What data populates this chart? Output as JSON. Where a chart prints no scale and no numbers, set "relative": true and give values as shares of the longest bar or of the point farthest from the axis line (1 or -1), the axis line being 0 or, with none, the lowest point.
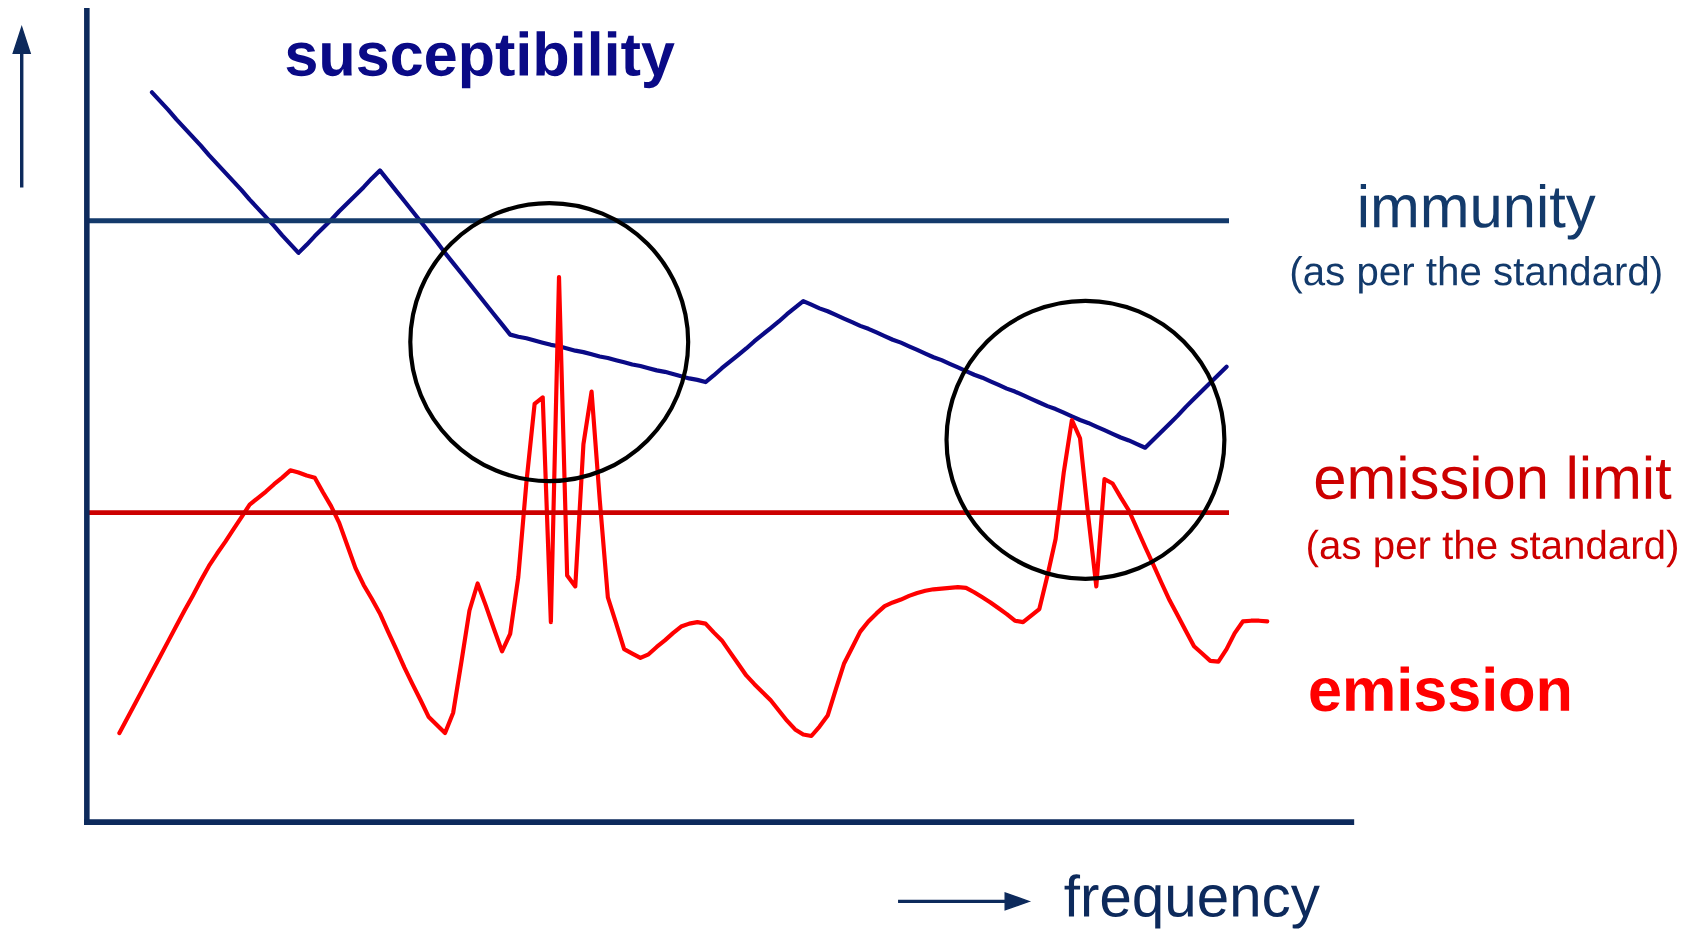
{
  "chart_data": {
    "type": "line",
    "relative": true,
    "xlabel": "frequency",
    "categories": [
      null,
      null,
      null,
      null,
      null,
      null,
      null,
      null,
      null,
      null,
      null,
      null,
      null,
      null,
      null,
      null,
      null,
      null,
      null,
      null,
      null,
      null,
      null,
      null,
      null,
      null,
      null,
      null,
      null,
      null,
      null,
      null,
      null,
      null,
      null,
      null,
      null,
      null,
      null,
      null,
      null,
      null,
      null,
      null,
      null,
      null,
      null,
      null,
      null,
      null,
      null,
      null,
      null,
      null,
      null,
      null,
      null,
      null,
      null,
      null,
      null,
      null,
      null,
      null,
      null,
      null,
      null,
      null,
      null,
      null,
      null,
      null,
      null,
      null,
      null,
      null,
      null,
      null,
      null,
      null,
      null,
      null,
      null,
      null,
      null,
      null,
      null,
      null,
      null,
      null,
      null,
      null,
      null,
      null,
      null,
      null,
      null,
      null,
      null,
      null,
      null,
      null,
      null,
      null,
      null,
      null,
      null,
      null,
      null,
      null,
      null,
      null,
      null,
      null,
      null,
      null,
      null,
      null,
      null,
      null,
      null,
      null,
      null,
      null,
      null,
      null,
      null,
      null,
      null,
      null,
      null,
      null,
      null,
      null,
      null,
      null,
      null,
      null,
      null,
      null,
      null,
      null
    ],
    "series": [
      {
        "name": "susceptibility",
        "color": "#0a0a86",
        "values": [
          null,
          null,
          null,
          null,
          1.0,
          0.988,
          0.976,
          0.963,
          0.951,
          0.939,
          0.927,
          0.914,
          0.902,
          0.89,
          0.878,
          0.866,
          0.853,
          0.841,
          0.829,
          0.817,
          0.804,
          0.792,
          0.78,
          0.791,
          0.803,
          0.814,
          0.825,
          0.837,
          0.848,
          0.859,
          0.87,
          0.882,
          0.893,
          0.879,
          0.865,
          0.851,
          0.837,
          0.823,
          0.809,
          0.795,
          0.78,
          0.766,
          0.752,
          0.738,
          0.724,
          0.71,
          0.696,
          0.682,
          0.668,
          0.665,
          0.663,
          0.66,
          0.657,
          0.654,
          0.652,
          0.649,
          0.646,
          0.644,
          0.641,
          0.638,
          0.636,
          0.633,
          0.63,
          0.627,
          0.625,
          0.622,
          0.619,
          0.617,
          0.614,
          0.611,
          0.608,
          0.606,
          0.603,
          0.612,
          0.622,
          0.631,
          0.64,
          0.649,
          0.659,
          0.668,
          0.677,
          0.686,
          0.696,
          0.705,
          0.714,
          0.709,
          0.704,
          0.7,
          0.695,
          0.69,
          0.685,
          0.68,
          0.676,
          0.671,
          0.666,
          0.661,
          0.657,
          0.652,
          0.647,
          0.642,
          0.637,
          0.633,
          0.628,
          0.623,
          0.618,
          0.613,
          0.609,
          0.604,
          0.599,
          0.594,
          0.59,
          0.585,
          0.58,
          0.575,
          0.57,
          0.566,
          0.561,
          0.556,
          0.551,
          0.547,
          0.542,
          0.537,
          0.532,
          0.527,
          0.523,
          0.518,
          0.513,
          0.524,
          0.535,
          0.546,
          0.557,
          0.569,
          0.58,
          0.591,
          0.602,
          0.613,
          0.624,
          null,
          null,
          null,
          null,
          null
        ]
      },
      {
        "name": "emission",
        "color": "#ff0000",
        "values": [
          0.122,
          0.143,
          0.164,
          0.185,
          0.206,
          0.227,
          0.248,
          0.269,
          0.29,
          0.31,
          0.331,
          0.351,
          0.368,
          0.384,
          0.401,
          0.418,
          0.435,
          0.444,
          0.453,
          0.463,
          0.472,
          0.482,
          0.479,
          0.475,
          0.472,
          0.452,
          0.433,
          0.41,
          0.379,
          0.348,
          0.325,
          0.306,
          0.286,
          0.261,
          0.237,
          0.212,
          0.189,
          0.167,
          0.144,
          0.133,
          0.122,
          0.15,
          0.219,
          0.29,
          0.327,
          0.297,
          0.265,
          0.234,
          0.258,
          0.336,
          0.466,
          0.573,
          0.582,
          0.274,
          0.747,
          0.338,
          0.323,
          0.518,
          0.59,
          0.442,
          0.308,
          0.273,
          0.237,
          0.231,
          0.225,
          0.23,
          0.24,
          0.249,
          0.259,
          0.268,
          0.272,
          0.274,
          0.272,
          0.26,
          0.249,
          0.233,
          0.217,
          0.201,
          0.189,
          0.178,
          0.167,
          0.153,
          0.139,
          0.127,
          0.12,
          0.118,
          0.131,
          0.146,
          0.182,
          0.217,
          0.239,
          0.261,
          0.275,
          0.286,
          0.296,
          0.301,
          0.305,
          0.31,
          0.314,
          0.317,
          0.319,
          0.32,
          0.321,
          0.322,
          0.321,
          0.315,
          0.308,
          0.301,
          0.293,
          0.285,
          0.276,
          0.274,
          0.283,
          0.292,
          0.338,
          0.388,
          0.479,
          0.551,
          0.526,
          0.42,
          0.323,
          0.47,
          0.464,
          0.445,
          0.427,
          0.402,
          0.377,
          0.353,
          0.328,
          0.304,
          0.283,
          0.262,
          0.241,
          0.231,
          0.221,
          0.22,
          0.237,
          0.259,
          0.275,
          0.276,
          0.276,
          0.275
        ]
      }
    ],
    "ref_lines": [
      {
        "axis": "y",
        "value": 0.824,
        "label": "immunity\n(as per the standard)",
        "color": "#133a6b"
      },
      {
        "axis": "y",
        "value": 0.424,
        "label": "emission limit\n(as per the standard)",
        "color": "#cc0000"
      }
    ]
  }
}
